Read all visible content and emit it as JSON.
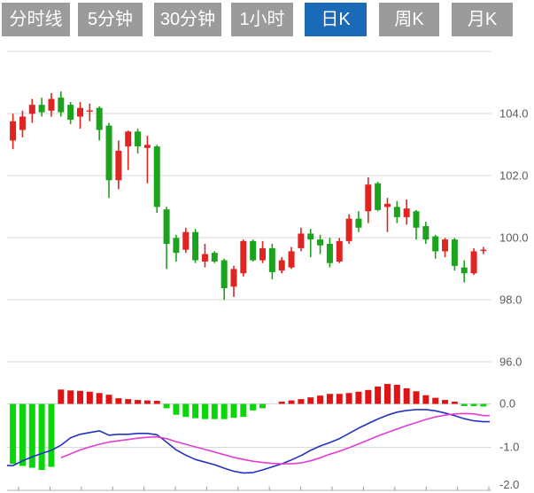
{
  "tabs": {
    "items": [
      {
        "label": "分时线",
        "active": false
      },
      {
        "label": "5分钟",
        "active": false
      },
      {
        "label": "30分钟",
        "active": false
      },
      {
        "label": "1小时",
        "active": false
      },
      {
        "label": "日K",
        "active": true
      },
      {
        "label": "周K",
        "active": false
      },
      {
        "label": "月K",
        "active": false
      }
    ]
  },
  "colors": {
    "tab_bg": "#9b9b9b",
    "tab_active_bg": "#1a6ab8",
    "tab_text": "#ffffff",
    "candle_up": "#e02422",
    "candle_down": "#1da21d",
    "macd_up": "#e01414",
    "macd_down": "#0ad60a",
    "dif_line": "#2531c0",
    "dea_line": "#e13fd0",
    "gridline": "#d9d9d9",
    "axis_line": "#c4c4c4",
    "axis_tick": "#999999",
    "axis_text": "#5a5a5a"
  },
  "chart_data": {
    "type": "candlestick",
    "panels": [
      "price",
      "macd"
    ],
    "price_axis": {
      "side": "right",
      "tick_labels": [
        "104.0",
        "102.0",
        "100.0",
        "98.0",
        "96.0"
      ],
      "tick_values": [
        104.0,
        102.0,
        100.0,
        98.0,
        96.0
      ],
      "gridline_values": [
        106.0,
        104.0,
        102.0,
        100.0,
        98.0,
        96.0
      ],
      "visible_range": [
        95.6,
        106.0
      ]
    },
    "indicator_axis": {
      "side": "right",
      "tick_labels": [
        "0.0",
        "-1.0",
        "-2.0"
      ],
      "tick_values": [
        0.0,
        -1.0,
        -2.0
      ],
      "visible_range": [
        -2.0,
        0.35
      ]
    },
    "candles_ohlc": [
      [
        103.13,
        103.99,
        102.85,
        103.75
      ],
      [
        103.47,
        104.09,
        103.23,
        103.9
      ],
      [
        103.99,
        104.47,
        103.7,
        104.28
      ],
      [
        104.28,
        104.51,
        103.9,
        104.04
      ],
      [
        104.09,
        104.66,
        103.9,
        104.47
      ],
      [
        104.51,
        104.71,
        103.9,
        104.04
      ],
      [
        104.28,
        104.37,
        103.66,
        103.8
      ],
      [
        103.9,
        104.37,
        103.51,
        104.18
      ],
      [
        104.07,
        104.32,
        103.75,
        104.1
      ],
      [
        104.18,
        104.23,
        103.13,
        103.47
      ],
      [
        103.61,
        103.7,
        101.28,
        101.85
      ],
      [
        101.85,
        103.13,
        101.56,
        102.8
      ],
      [
        102.94,
        103.45,
        102.18,
        103.42
      ],
      [
        103.42,
        103.51,
        102.71,
        102.94
      ],
      [
        102.89,
        103.28,
        101.75,
        102.99
      ],
      [
        102.94,
        102.99,
        100.8,
        100.99
      ],
      [
        100.91,
        100.99,
        98.99,
        99.8
      ],
      [
        99.99,
        100.09,
        99.23,
        99.51
      ],
      [
        99.61,
        100.32,
        99.51,
        100.18
      ],
      [
        100.18,
        100.28,
        99.18,
        99.27
      ],
      [
        99.23,
        99.8,
        99.04,
        99.47
      ],
      [
        99.51,
        99.56,
        99.18,
        99.23
      ],
      [
        99.27,
        99.32,
        97.99,
        98.37
      ],
      [
        98.42,
        99.09,
        98.09,
        98.99
      ],
      [
        98.85,
        99.94,
        98.75,
        99.89
      ],
      [
        99.89,
        99.94,
        99.23,
        99.27
      ],
      [
        99.27,
        99.89,
        99.18,
        99.66
      ],
      [
        99.66,
        99.8,
        98.66,
        98.89
      ],
      [
        98.94,
        99.37,
        98.85,
        99.27
      ],
      [
        99.04,
        99.7,
        98.99,
        99.56
      ],
      [
        99.66,
        100.32,
        99.56,
        100.13
      ],
      [
        100.13,
        100.28,
        99.37,
        99.94
      ],
      [
        99.94,
        100.09,
        99.47,
        99.75
      ],
      [
        99.8,
        99.99,
        99.04,
        99.18
      ],
      [
        99.23,
        99.99,
        99.18,
        99.89
      ],
      [
        99.89,
        100.75,
        99.8,
        100.61
      ],
      [
        100.61,
        100.85,
        100.18,
        100.32
      ],
      [
        100.85,
        101.94,
        100.47,
        101.71
      ],
      [
        101.75,
        101.8,
        100.85,
        100.89
      ],
      [
        100.99,
        101.28,
        100.18,
        101.09
      ],
      [
        100.99,
        101.18,
        100.47,
        100.66
      ],
      [
        100.66,
        101.23,
        100.42,
        100.94
      ],
      [
        100.85,
        100.89,
        99.94,
        100.32
      ],
      [
        100.37,
        100.51,
        99.8,
        99.94
      ],
      [
        100.04,
        100.09,
        99.32,
        99.56
      ],
      [
        99.56,
        99.99,
        99.37,
        99.94
      ],
      [
        99.94,
        99.99,
        98.94,
        99.09
      ],
      [
        99.04,
        99.27,
        98.56,
        98.85
      ],
      [
        98.85,
        99.66,
        98.8,
        99.56
      ],
      [
        99.58,
        99.7,
        99.47,
        99.61
      ]
    ],
    "macd": {
      "histogram": [
        -1.38,
        -1.43,
        -1.47,
        -1.52,
        -1.45,
        0.33,
        0.31,
        0.3,
        0.28,
        0.25,
        0.21,
        0.13,
        0.11,
        0.09,
        0.08,
        0.07,
        -0.1,
        -0.25,
        -0.3,
        -0.33,
        -0.35,
        -0.35,
        -0.35,
        -0.32,
        -0.3,
        -0.15,
        -0.1,
        0.0,
        0.05,
        0.08,
        0.11,
        0.15,
        0.19,
        0.23,
        0.23,
        0.25,
        0.28,
        0.32,
        0.4,
        0.46,
        0.44,
        0.36,
        0.29,
        0.2,
        0.14,
        0.09,
        0.05,
        -0.04,
        -0.05,
        -0.06
      ],
      "dif": [
        -1.42,
        -1.31,
        -1.22,
        -1.14,
        -1.07,
        -0.95,
        -0.78,
        -0.7,
        -0.66,
        -0.62,
        -0.72,
        -0.7,
        -0.7,
        -0.68,
        -0.68,
        -0.71,
        -0.88,
        -1.06,
        -1.18,
        -1.28,
        -1.34,
        -1.4,
        -1.48,
        -1.55,
        -1.59,
        -1.58,
        -1.52,
        -1.45,
        -1.38,
        -1.29,
        -1.19,
        -1.07,
        -0.97,
        -0.89,
        -0.8,
        -0.68,
        -0.56,
        -0.45,
        -0.35,
        -0.26,
        -0.19,
        -0.15,
        -0.13,
        -0.13,
        -0.16,
        -0.21,
        -0.27,
        -0.34,
        -0.39,
        -0.41
      ],
      "dea": [
        null,
        null,
        null,
        null,
        null,
        -1.24,
        -1.15,
        -1.06,
        -0.99,
        -0.93,
        -0.88,
        -0.85,
        -0.82,
        -0.79,
        -0.77,
        -0.76,
        -0.8,
        -0.87,
        -0.93,
        -0.99,
        -1.05,
        -1.11,
        -1.17,
        -1.23,
        -1.28,
        -1.32,
        -1.35,
        -1.37,
        -1.38,
        -1.38,
        -1.36,
        -1.31,
        -1.24,
        -1.16,
        -1.09,
        -1.01,
        -0.92,
        -0.83,
        -0.74,
        -0.66,
        -0.58,
        -0.5,
        -0.43,
        -0.36,
        -0.3,
        -0.26,
        -0.23,
        -0.22,
        -0.23,
        -0.27
      ]
    }
  }
}
